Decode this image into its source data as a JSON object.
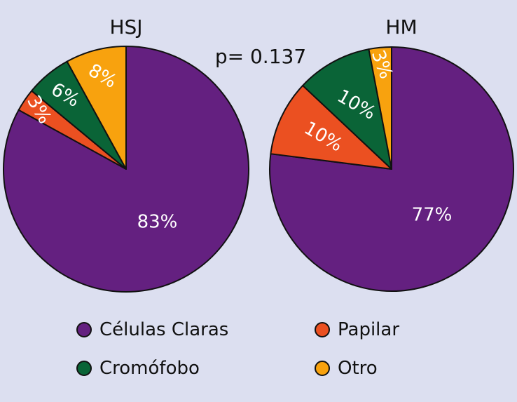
{
  "chart_data": {
    "type": "pie",
    "annotation": "p= 0.137",
    "colors": {
      "Células Claras": "#642080",
      "Papilar": "#eb5021",
      "Cromófobo": "#0a6437",
      "Otro": "#f8a20e"
    },
    "pies": [
      {
        "title": "HSJ",
        "slices": [
          {
            "label": "Células Claras",
            "value": 83,
            "text": "83%"
          },
          {
            "label": "Papilar",
            "value": 3,
            "text": "3%"
          },
          {
            "label": "Cromófobo",
            "value": 6,
            "text": "6%"
          },
          {
            "label": "Otro",
            "value": 8,
            "text": "8%"
          }
        ]
      },
      {
        "title": "HM",
        "slices": [
          {
            "label": "Células Claras",
            "value": 77,
            "text": "77%"
          },
          {
            "label": "Papilar",
            "value": 10,
            "text": "10%"
          },
          {
            "label": "Cromófobo",
            "value": 10,
            "text": "10%"
          },
          {
            "label": "Otro",
            "value": 3,
            "text": "3%"
          }
        ]
      }
    ],
    "legend": {
      "position": "bottom",
      "entries": [
        "Células Claras",
        "Papilar",
        "Cromófobo",
        "Otro"
      ]
    }
  }
}
